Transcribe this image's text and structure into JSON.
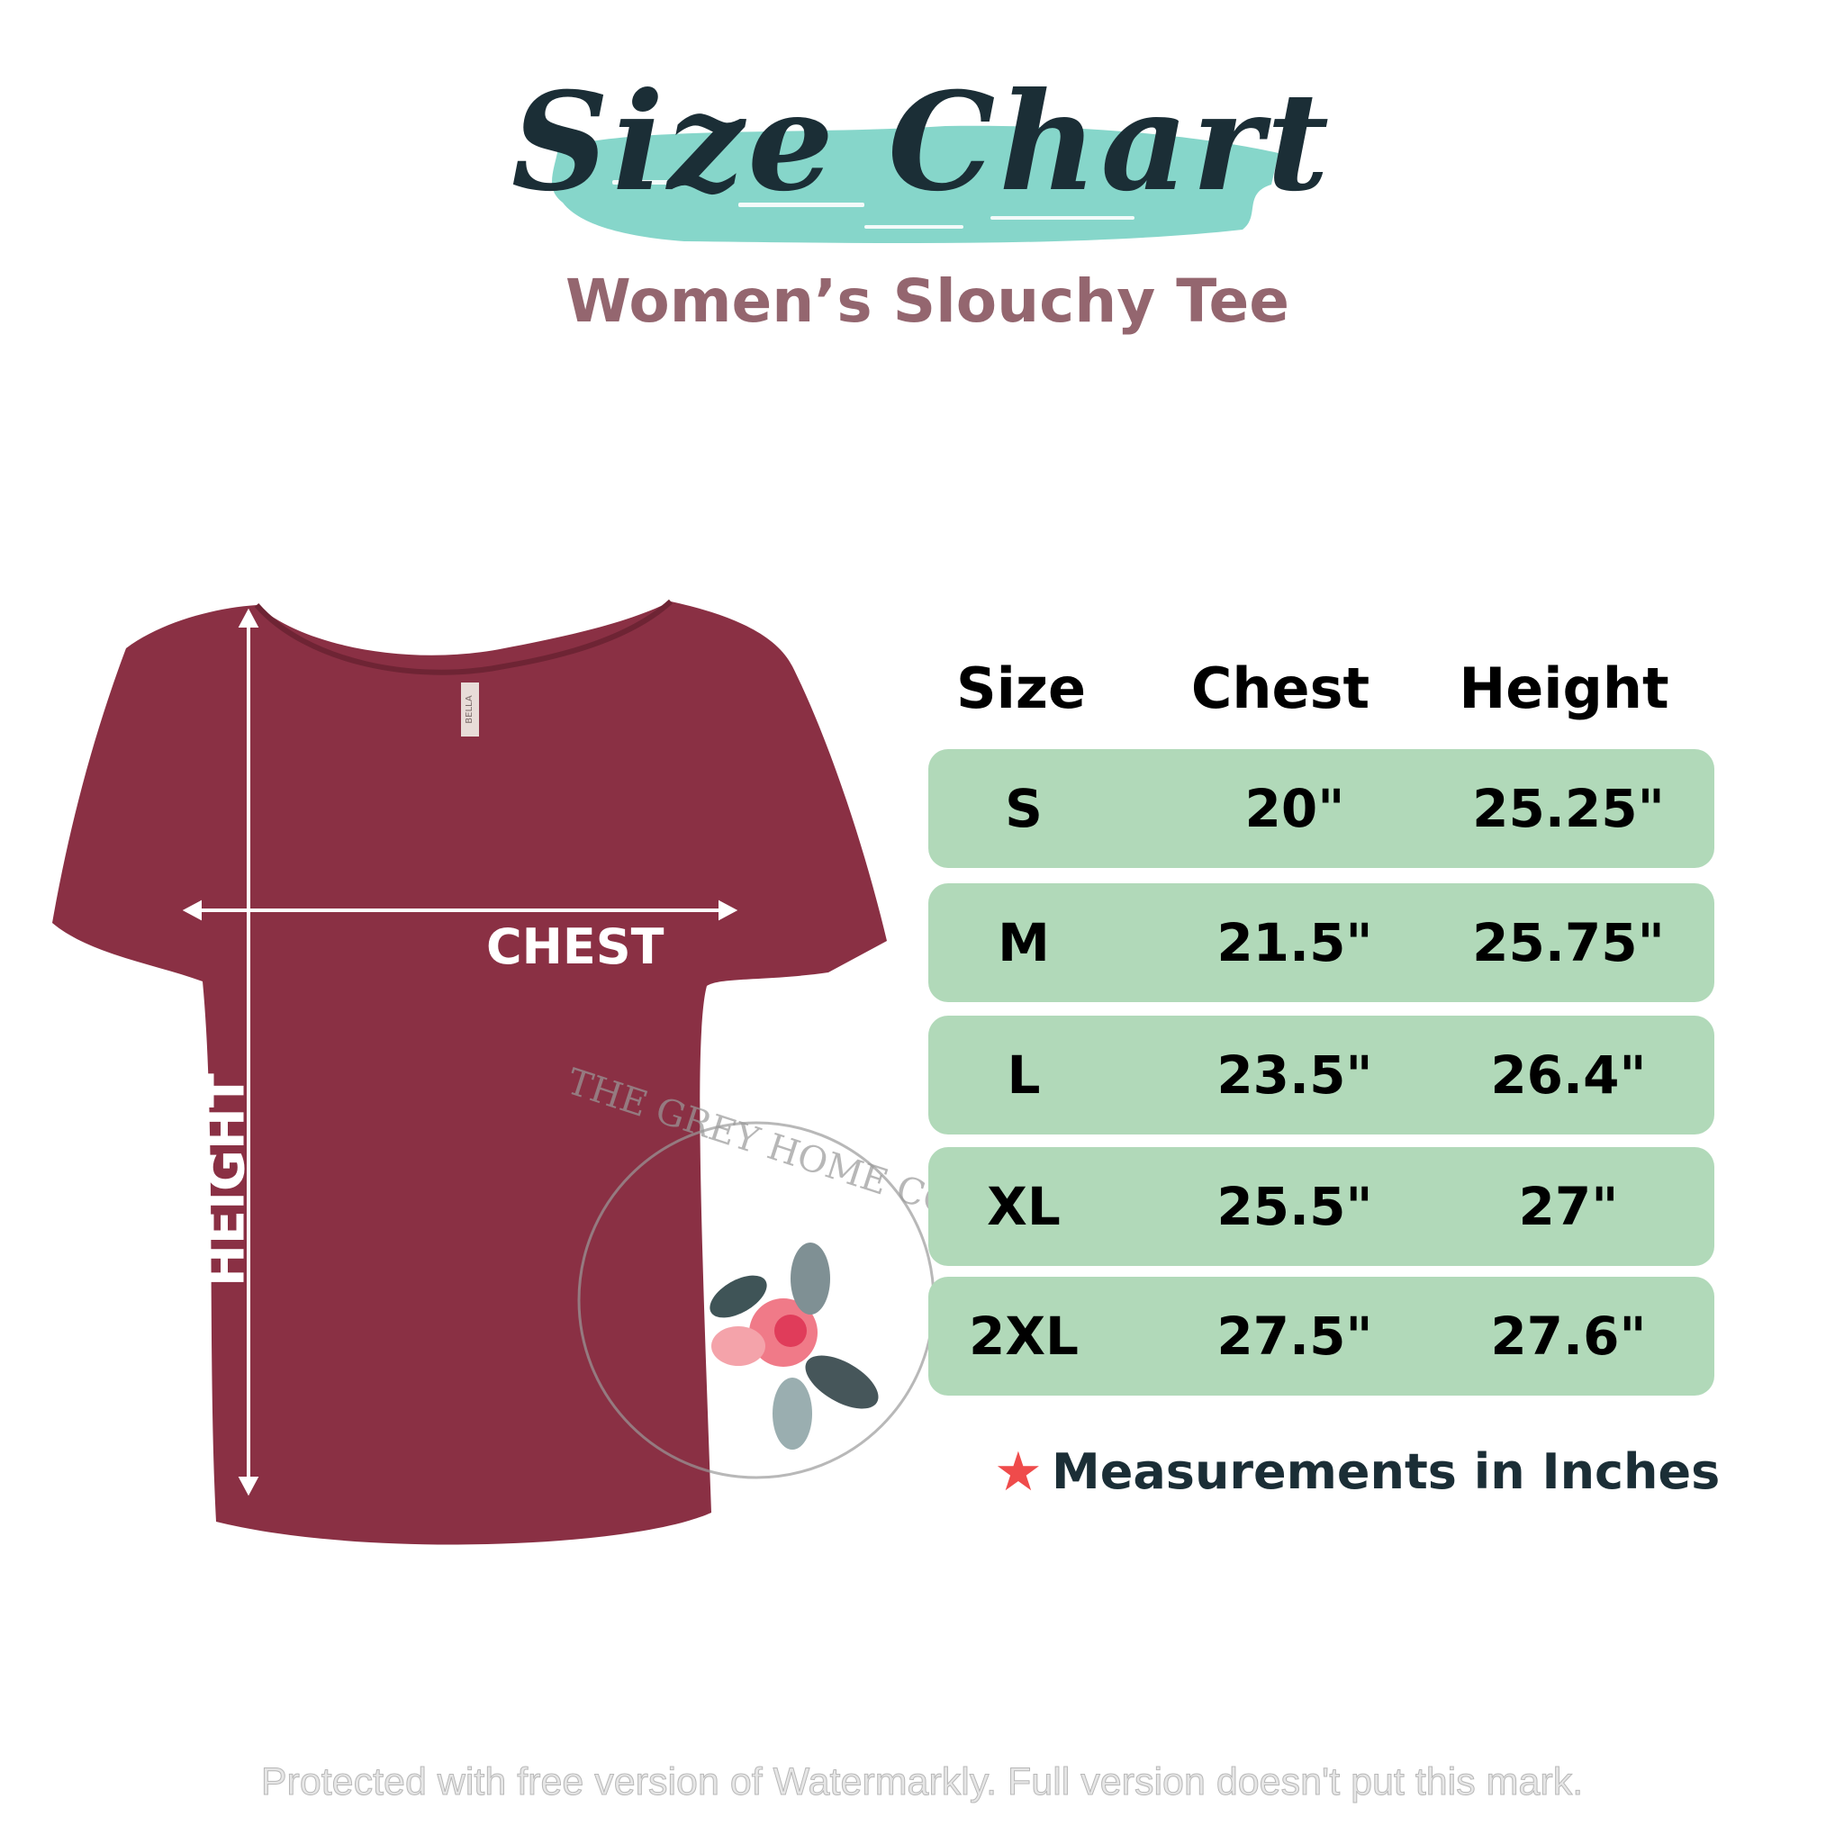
{
  "header": {
    "title": "Size Chart",
    "subtitle": "Women’s Slouchy Tee",
    "brush_color": "#86d6ca",
    "title_color": "#1b2e36",
    "subtitle_color": "#94666f"
  },
  "garment": {
    "color": "#8a3044",
    "chest_label": "CHEST",
    "height_label": "HEIGHT",
    "tag_text": "BELLA"
  },
  "table": {
    "headers": [
      "Size",
      "Chest",
      "Height"
    ],
    "row_color": "#b1d9b9",
    "rows": [
      {
        "size": "S",
        "chest": "20\"",
        "height": "25.25\""
      },
      {
        "size": "M",
        "chest": "21.5\"",
        "height": "25.75\""
      },
      {
        "size": "L",
        "chest": "23.5\"",
        "height": "26.4\""
      },
      {
        "size": "XL",
        "chest": "25.5\"",
        "height": "27\""
      },
      {
        "size": "2XL",
        "chest": "27.5\"",
        "height": "27.6\""
      }
    ]
  },
  "note": {
    "icon": "star-icon",
    "text": "Measurements in Inches",
    "star_color": "#ef4b4b"
  },
  "logo": {
    "text": "THE GREY HOME CO."
  },
  "watermark": "Protected with free version of Watermarkly. Full version doesn't put this mark."
}
